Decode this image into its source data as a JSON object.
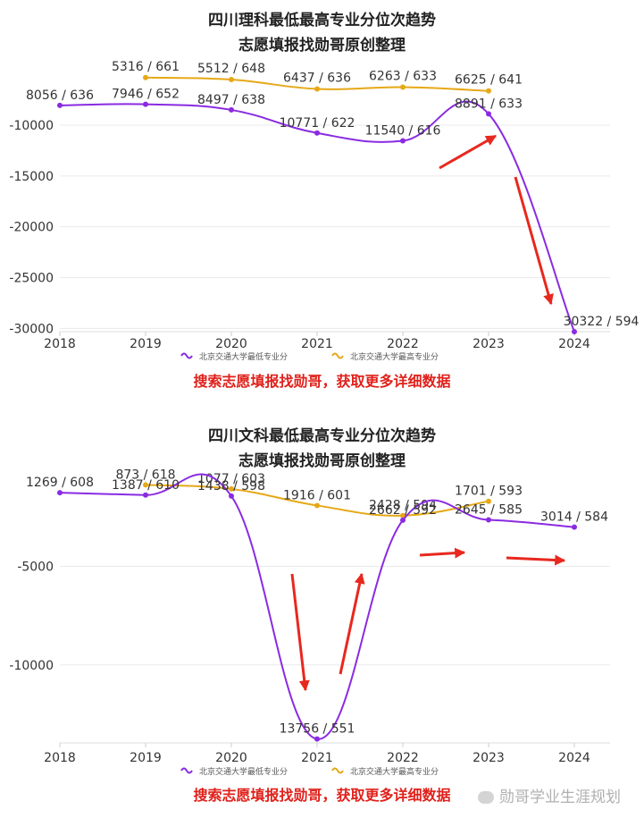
{
  "chart_data": [
    {
      "type": "line",
      "title": "四川理科最低最高专业分位次趋势",
      "subtitle": "志愿填报找勋哥原创整理",
      "categories": [
        "2018",
        "2019",
        "2020",
        "2021",
        "2022",
        "2023",
        "2024"
      ],
      "yticks": [
        -10000,
        -15000,
        -20000,
        -25000,
        -30000
      ],
      "ylim": [
        -30500,
        -5600
      ],
      "series": [
        {
          "name": "北京交通大学最低专业分",
          "color": "#8a2be2",
          "values": [
            -8056,
            -7946,
            -8497,
            -10771,
            -11540,
            -8891,
            -30322
          ],
          "labels": [
            "8056 / 636",
            "7946 / 652",
            "8497 / 638",
            "10771 / 622",
            "11540 / 616",
            "8891 / 633",
            "30322 / 594"
          ]
        },
        {
          "name": "北京交通大学最高专业分",
          "color": "#e6a817",
          "values": [
            null,
            -5316,
            -5512,
            -6437,
            -6263,
            -6625,
            null
          ],
          "labels": [
            "",
            "5316 / 661",
            "5512 / 648",
            "6437 / 636",
            "6263 / 633",
            "6625 / 641",
            ""
          ]
        }
      ],
      "grid": true,
      "legend": "bottom",
      "promo": "搜索志愿填报找勋哥，获取更多详细数据"
    },
    {
      "type": "line",
      "title": "四川文科最低最高专业分位次趋势",
      "subtitle": "志愿填报找勋哥原创整理",
      "categories": [
        "2018",
        "2019",
        "2020",
        "2021",
        "2022",
        "2023",
        "2024"
      ],
      "yticks": [
        -5000,
        -10000
      ],
      "ylim": [
        -14000,
        -400
      ],
      "series": [
        {
          "name": "北京交通大学最低专业分",
          "color": "#8a2be2",
          "values": [
            -1269,
            -1387,
            -1438,
            -13756,
            -2662,
            -2645,
            -3014
          ],
          "labels": [
            "1269 / 608",
            "1387 / 610",
            "1438 / 598",
            "13756 / 551",
            "2662 / 592",
            "2645 / 585",
            "3014 / 584"
          ]
        },
        {
          "name": "北京交通大学最高专业分",
          "color": "#e6a817",
          "values": [
            null,
            -873,
            -1077,
            -1916,
            -2428,
            -1701,
            null
          ],
          "labels": [
            "",
            "873 / 618",
            "1077 / 603",
            "1916 / 601",
            "2428 / 594",
            "1701 / 593",
            ""
          ]
        }
      ],
      "grid": true,
      "legend": "bottom",
      "promo": "搜索志愿填报找勋哥，获取更多详细数据"
    }
  ],
  "watermark": "勋哥学业生涯规划",
  "colors": {
    "arrow": "#e8281e",
    "promo": "#e0201a"
  }
}
